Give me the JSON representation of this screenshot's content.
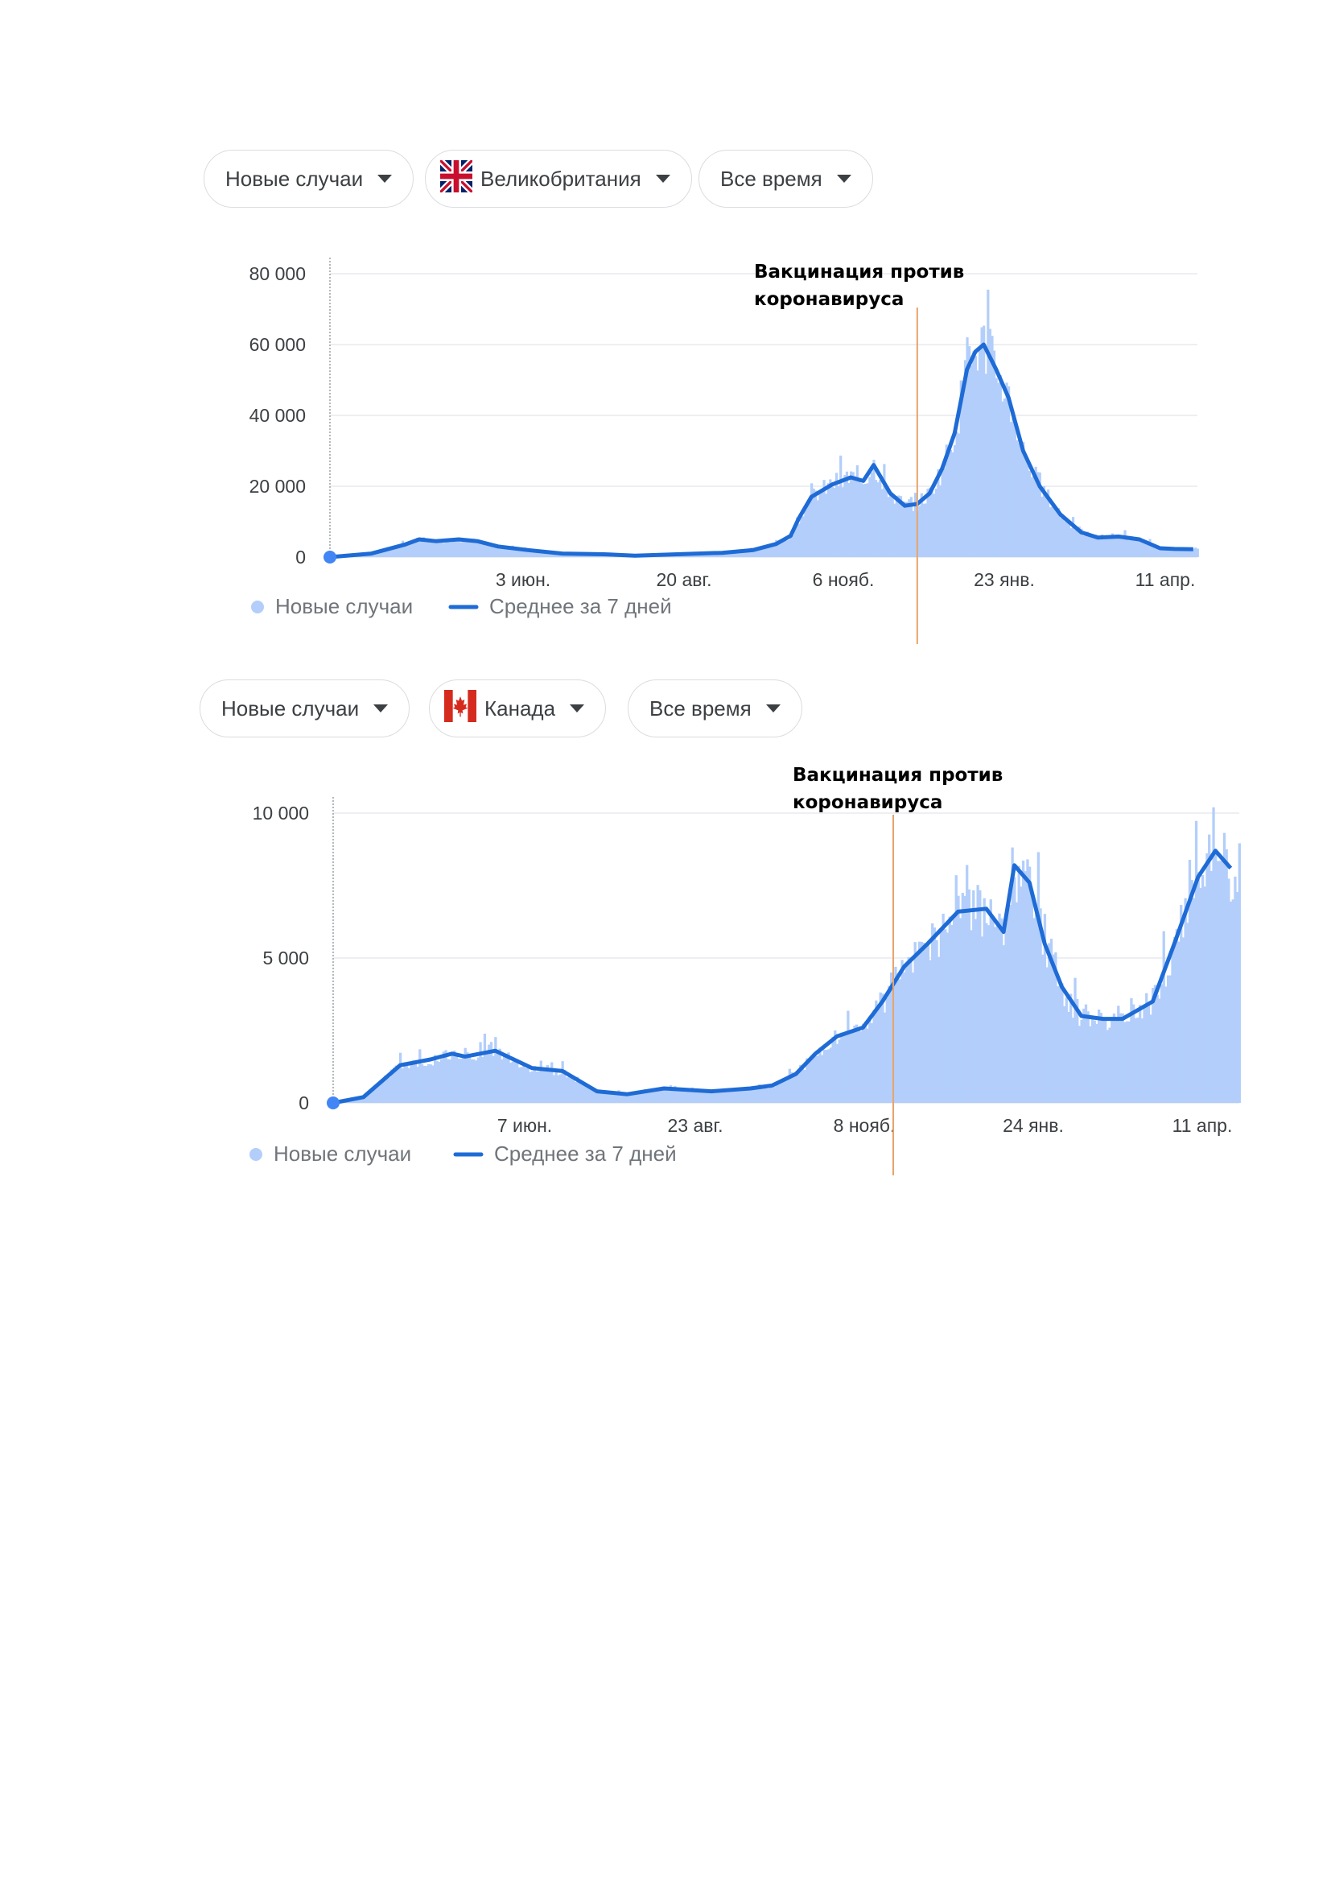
{
  "panels": [
    {
      "controls": {
        "metric": "Новые случаи",
        "country": "Великобритания",
        "period": "Все время",
        "flag": "flag-uk-icon"
      },
      "legend": {
        "bars": "Новые случаи",
        "line": "Среднее за 7 дней"
      },
      "annotation": {
        "line1": "Вакцинация против",
        "line2": "коронавируса"
      }
    },
    {
      "controls": {
        "metric": "Новые случаи",
        "country": "Канада",
        "period": "Все время",
        "flag": "flag-canada-icon"
      },
      "legend": {
        "bars": "Новые случаи",
        "line": "Среднее за 7 дней"
      },
      "annotation": {
        "line1": "Вакцинация против",
        "line2": "коронавируса"
      }
    }
  ],
  "colors": {
    "bars": "#b3cefa",
    "line": "#1e6bd6",
    "annotation_line": "#e8a36a",
    "grid": "#e8eaed",
    "dot": "#4285f4"
  },
  "chart_data": [
    {
      "type": "line",
      "title": "",
      "x_axis_ticks": [
        "3 июн.",
        "20 авг.",
        "6 нояб.",
        "23 янв.",
        "11 апр."
      ],
      "y_axis_ticks": [
        "0",
        "20 000",
        "40 000",
        "60 000",
        "80 000"
      ],
      "ylim": [
        0,
        80000
      ],
      "grid": true,
      "legend_position": "bottom-left",
      "annotation_text": "Вакцинация против коронавируса",
      "annotation_x": "2020-12-08",
      "series": [
        {
          "name": "Новые случаи",
          "type": "bar"
        },
        {
          "name": "Среднее за 7 дней",
          "type": "line",
          "x": [
            "2020-02-29",
            "2020-03-20",
            "2020-04-05",
            "2020-04-12",
            "2020-04-20",
            "2020-05-01",
            "2020-05-10",
            "2020-05-20",
            "2020-06-03",
            "2020-06-20",
            "2020-07-10",
            "2020-07-25",
            "2020-08-10",
            "2020-08-20",
            "2020-09-05",
            "2020-09-20",
            "2020-10-01",
            "2020-10-08",
            "2020-10-12",
            "2020-10-18",
            "2020-10-28",
            "2020-11-06",
            "2020-11-12",
            "2020-11-17",
            "2020-11-25",
            "2020-12-02",
            "2020-12-08",
            "2020-12-14",
            "2020-12-20",
            "2020-12-26",
            "2021-01-01",
            "2021-01-05",
            "2021-01-09",
            "2021-01-15",
            "2021-01-21",
            "2021-01-28",
            "2021-02-05",
            "2021-02-15",
            "2021-02-25",
            "2021-03-05",
            "2021-03-15",
            "2021-03-25",
            "2021-04-04",
            "2021-04-11",
            "2021-04-20"
          ],
          "y": [
            0,
            1000,
            3500,
            5000,
            4500,
            5000,
            4500,
            3000,
            2000,
            1000,
            800,
            400,
            700,
            900,
            1200,
            2000,
            3700,
            6000,
            11000,
            17000,
            20500,
            22500,
            21500,
            26000,
            18000,
            14500,
            15000,
            18000,
            25000,
            35000,
            53000,
            58000,
            60000,
            53000,
            45000,
            30000,
            20000,
            12000,
            7000,
            5500,
            5800,
            5000,
            2500,
            2300,
            2200
          ]
        }
      ]
    },
    {
      "type": "line",
      "title": "",
      "x_axis_ticks": [
        "7 июн.",
        "23 авг.",
        "8 нояб.",
        "24 янв.",
        "11 апр."
      ],
      "y_axis_ticks": [
        "0",
        "5 000",
        "10 000"
      ],
      "ylim": [
        0,
        10000
      ],
      "grid": true,
      "legend_position": "bottom-left",
      "annotation_text": "Вакцинация против коронавируса",
      "annotation_x": "2020-11-15",
      "series": [
        {
          "name": "Новые случаи",
          "type": "bar"
        },
        {
          "name": "Среднее за 7 дней",
          "type": "line",
          "x": [
            "2020-03-01",
            "2020-03-15",
            "2020-04-01",
            "2020-04-15",
            "2020-04-25",
            "2020-05-01",
            "2020-05-15",
            "2020-06-01",
            "2020-06-15",
            "2020-07-01",
            "2020-07-15",
            "2020-08-01",
            "2020-08-23",
            "2020-09-10",
            "2020-09-20",
            "2020-10-01",
            "2020-10-10",
            "2020-10-20",
            "2020-11-01",
            "2020-11-10",
            "2020-11-20",
            "2020-12-01",
            "2020-12-15",
            "2020-12-28",
            "2021-01-05",
            "2021-01-10",
            "2021-01-17",
            "2021-01-24",
            "2021-02-01",
            "2021-02-10",
            "2021-02-20",
            "2021-03-01",
            "2021-03-15",
            "2021-03-25",
            "2021-04-05",
            "2021-04-13",
            "2021-04-20"
          ],
          "y": [
            0,
            200,
            1300,
            1500,
            1700,
            1600,
            1800,
            1200,
            1100,
            400,
            300,
            500,
            400,
            500,
            600,
            1000,
            1700,
            2300,
            2600,
            3500,
            4700,
            5500,
            6600,
            6700,
            5900,
            8200,
            7600,
            5500,
            4000,
            3000,
            2900,
            2900,
            3500,
            5500,
            7800,
            8700,
            8100
          ]
        }
      ]
    }
  ]
}
